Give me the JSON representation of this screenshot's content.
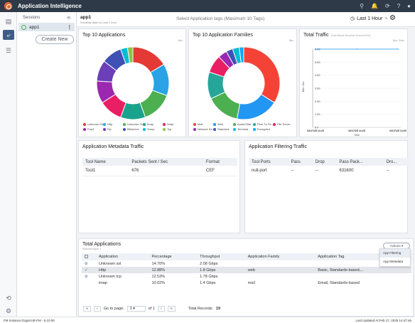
{
  "app": {
    "title": "Application Intelligence"
  },
  "sessions": {
    "label": "Sessions",
    "item": "app1",
    "create_label": "Create New"
  },
  "header": {
    "session_name": "app1",
    "subtitle": "Showing data for Last 1 hour",
    "tag_placeholder": "Select Application tags (Maximum 10 Tags)",
    "time_range": "Last 1 Hour"
  },
  "top_apps": {
    "title": "Top 10 Applications",
    "unit": "Bps",
    "legend": [
      {
        "label": "Unknown Ss..",
        "color": "#e53935"
      },
      {
        "label": "Http",
        "color": "#29a3e6"
      },
      {
        "label": "Unknown Tc..",
        "color": "#4caf50"
      },
      {
        "label": "Imap",
        "color": "#1aa38c"
      },
      {
        "label": "Smtp",
        "color": "#e91e63"
      },
      {
        "label": "Pop3",
        "color": "#9c27b0"
      },
      {
        "label": "Ftp",
        "color": "#6a3fb8"
      },
      {
        "label": "Bittorrent",
        "color": "#3f51b5"
      },
      {
        "label": "Snmp",
        "color": "#00bcd4"
      },
      {
        "label": "Tcp",
        "color": "#8bc34a"
      }
    ]
  },
  "top_families": {
    "title": "Top 10 Application Families",
    "unit": "Bps",
    "legend": [
      {
        "label": "Mail",
        "color": "#f44336"
      },
      {
        "label": "Web",
        "color": "#2196f3"
      },
      {
        "label": "Audio/Vide..",
        "color": "#4caf50"
      },
      {
        "label": "Peer To Pe..",
        "color": "#26a69a"
      },
      {
        "label": "File Serve..",
        "color": "#e91e63"
      },
      {
        "label": "Network Se..",
        "color": "#9c27b0"
      },
      {
        "label": "Standard",
        "color": "#3f51b5"
      },
      {
        "label": "Terminal",
        "color": "#00bcd4"
      },
      {
        "label": "Encrypted",
        "color": "#03a9f4"
      }
    ]
  },
  "total_traffic": {
    "title": "Total Traffic",
    "hint": "(Use Mouse Scroll for Zoom in/Out)",
    "unit": "Bps, Gbps",
    "ylabel": "Bits / Sec",
    "y_ticks": [
      "6.0G",
      "5.0G",
      "4.0G",
      "3.0G",
      "2.0G",
      "1.0G",
      "0.0"
    ],
    "x_ticks": [
      "02/17/25 14:20",
      "02/17/25 14:25",
      "02/17/25 14:30"
    ],
    "xlabel": "Time"
  },
  "chart_data": [
    {
      "type": "pie",
      "title": "Top 10 Applications",
      "categories": [
        "Unknown Ss..",
        "Http",
        "Unknown Tc..",
        "Imap",
        "Smtp",
        "Pop3",
        "Ftp",
        "Bittorrent",
        "Snmp",
        "Tcp"
      ],
      "values": [
        14.7,
        12.88,
        12.53,
        10.02,
        9.5,
        9.0,
        8.5,
        8.2,
        2.8,
        2.2
      ]
    },
    {
      "type": "pie",
      "title": "Top 10 Application Families",
      "categories": [
        "Mail",
        "Web",
        "Audio/Vide..",
        "Peer To Pe..",
        "File Serve..",
        "Network Se..",
        "Standard",
        "Terminal",
        "Encrypted"
      ],
      "values": [
        34,
        19,
        15,
        12,
        8,
        4,
        3,
        3,
        2
      ]
    },
    {
      "type": "line",
      "title": "Total Traffic",
      "x": [
        "02/17/25 14:20",
        "02/17/25 14:25",
        "02/17/25 14:30"
      ],
      "series": [
        {
          "values": [
            6.0,
            6.0,
            6.0
          ]
        }
      ],
      "ylim": [
        0,
        6.0
      ],
      "ylabel": "Bits / Sec",
      "xlabel": "Time"
    }
  ],
  "meta_traffic": {
    "title": "Application Metadata Traffic",
    "headers": [
      "Tool Name",
      "Packets Sent / Sec",
      "Format"
    ],
    "rows": [
      [
        "Tool1",
        "676",
        "CEF"
      ]
    ]
  },
  "filter_traffic": {
    "title": "Application Filtering Traffic",
    "headers": [
      "Tool Ports",
      "Pass",
      "Drop",
      "Pass Pack...",
      "Dro..."
    ],
    "rows": [
      [
        "null-port",
        "--",
        "--",
        "631600",
        "--"
      ]
    ]
  },
  "total_apps": {
    "title": "Total Applications",
    "subtitle": "Selected Apps: 1",
    "actions": "Actions",
    "menu": [
      "App Filtering",
      "App Metadata"
    ],
    "headers": [
      "Application",
      "Percentage",
      "Throughput",
      "Application Family",
      "Application Tag"
    ],
    "rows": [
      {
        "app": "Unknown ssl",
        "pct": "14.70%",
        "tput": "2.08 Gbps",
        "family": "",
        "tag": ""
      },
      {
        "app": "Http",
        "pct": "12.88%",
        "tput": "1.8 Gbps",
        "family": "web",
        "tag": "Basic, Standards-based,..."
      },
      {
        "app": "Unknown tcp",
        "pct": "12.53%",
        "tput": "1.78 Gbps",
        "family": "",
        "tag": ""
      },
      {
        "app": "imap",
        "pct": "10.02%",
        "tput": "1.4 Gbps",
        "family": "mail",
        "tag": "Email, Standards-based"
      }
    ],
    "pager": {
      "goto": "Go to page:",
      "page": "1",
      "of": "of 1",
      "records_label": "Total Records:",
      "records": "19"
    }
  },
  "footer": {
    "left": "FM Instance:GigaVUE-FM - 6.10.00",
    "right": "Last Updated At:Feb 17, 2025 14:47:46"
  }
}
